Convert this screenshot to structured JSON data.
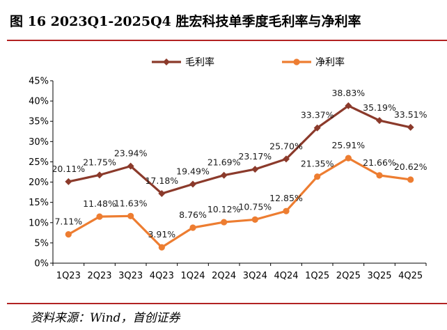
{
  "figure": {
    "title": "图 16 2023Q1-2025Q4 胜宏科技单季度毛利率与净利率",
    "source": "资料来源：Wind，首创证券"
  },
  "colors": {
    "gross_margin": "#8b3a2b",
    "net_margin": "#ed7d31",
    "accent_rule": "#b22222",
    "axis": "#000000"
  },
  "chart_data": {
    "type": "line",
    "categories": [
      "1Q23",
      "2Q23",
      "3Q23",
      "4Q23",
      "1Q24",
      "2Q24",
      "3Q24",
      "4Q24",
      "1Q25",
      "2Q25",
      "3Q25",
      "4Q25"
    ],
    "series": [
      {
        "name": "毛利率",
        "marker": "diamond",
        "values": [
          20.11,
          21.75,
          23.94,
          17.18,
          19.49,
          21.69,
          23.17,
          25.7,
          33.37,
          38.83,
          35.19,
          33.51
        ],
        "labels": [
          "20.11%",
          "21.75%",
          "23.94%",
          "17.18%",
          "19.49%",
          "21.69%",
          "23.17%",
          "25.70%",
          "33.37%",
          "38.83%",
          "35.19%",
          "33.51%"
        ]
      },
      {
        "name": "净利率",
        "marker": "circle",
        "values": [
          7.11,
          11.48,
          11.63,
          3.91,
          8.76,
          10.12,
          10.75,
          12.85,
          21.35,
          25.91,
          21.66,
          20.62
        ],
        "labels": [
          "7.11%",
          "11.48%",
          "11.63%",
          "3.91%",
          "8.76%",
          "10.12%",
          "10.75%",
          "12.85%",
          "21.35%",
          "25.91%",
          "21.66%",
          "20.62%"
        ]
      }
    ],
    "yticks": [
      0,
      5,
      10,
      15,
      20,
      25,
      30,
      35,
      40,
      45
    ],
    "ytick_labels": [
      "0%",
      "5%",
      "10%",
      "15%",
      "20%",
      "25%",
      "30%",
      "35%",
      "40%",
      "45%"
    ],
    "ylim": [
      0,
      45
    ],
    "xlabel": "",
    "ylabel": "",
    "grid": false,
    "legend": "top-center"
  }
}
